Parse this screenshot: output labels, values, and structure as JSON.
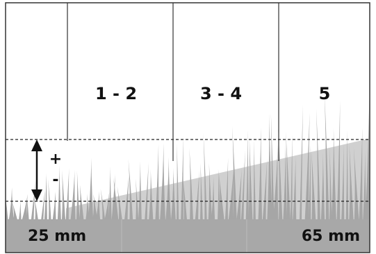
{
  "columns": [
    {
      "label": "1 - 2"
    },
    {
      "label": "3 - 4"
    },
    {
      "label": "5"
    }
  ],
  "indicator": {
    "plus": "+",
    "minus": "-"
  },
  "heights": {
    "min_label": "25 mm",
    "max_label": "65 mm"
  },
  "colors": {
    "frame": "#333333",
    "grass_dark": "#a6a6a6",
    "grass_light": "#d0d0d0",
    "base": "#a8a8a8",
    "text": "#111111"
  }
}
